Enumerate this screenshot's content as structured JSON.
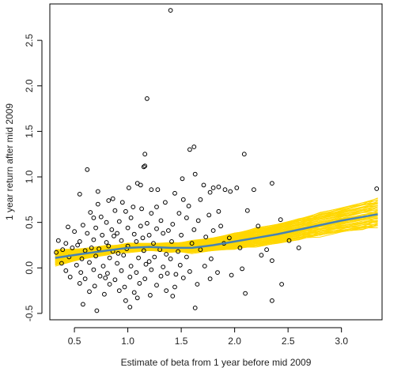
{
  "chart_data": {
    "type": "scatter",
    "title": "",
    "xlabel": "Estimate of beta from 1 year before mid 2009",
    "ylabel": "1 year return after mid 2009",
    "xlim": [
      0.27,
      3.38
    ],
    "ylim": [
      -0.57,
      2.9
    ],
    "xticks": [
      "0.5",
      "1.0",
      "1.5",
      "2.0",
      "2.5",
      "3.0"
    ],
    "yticks": [
      "-0.5",
      "0.0",
      "0.5",
      "1.0",
      "1.5",
      "2.0",
      "2.5"
    ],
    "grid": false,
    "legend": "none",
    "colors": {
      "points": "#000000",
      "bootstrap": "#FFD700",
      "fit": "#4682B4"
    },
    "points": [
      [
        1.4,
        2.83
      ],
      [
        1.18,
        1.86
      ],
      [
        1.62,
        1.33
      ],
      [
        1.58,
        1.3
      ],
      [
        1.16,
        1.25
      ],
      [
        2.09,
        1.25
      ],
      [
        1.16,
        1.12
      ],
      [
        1.15,
        1.11
      ],
      [
        0.62,
        1.08
      ],
      [
        1.63,
        1.03
      ],
      [
        1.51,
        0.98
      ],
      [
        1.09,
        0.93
      ],
      [
        1.12,
        0.91
      ],
      [
        2.35,
        0.93
      ],
      [
        1.01,
        0.88
      ],
      [
        1.71,
        0.91
      ],
      [
        3.33,
        0.87
      ],
      [
        0.72,
        0.84
      ],
      [
        1.28,
        0.86
      ],
      [
        1.22,
        0.86
      ],
      [
        1.8,
        0.88
      ],
      [
        1.85,
        0.89
      ],
      [
        2.02,
        0.88
      ],
      [
        1.91,
        0.86
      ],
      [
        0.55,
        0.81
      ],
      [
        1.44,
        0.82
      ],
      [
        1.77,
        0.83
      ],
      [
        1.96,
        0.84
      ],
      [
        2.18,
        0.86
      ],
      [
        0.86,
        0.76
      ],
      [
        1.52,
        0.75
      ],
      [
        1.68,
        0.75
      ],
      [
        1.57,
        0.68
      ],
      [
        2.12,
        0.63
      ],
      [
        1.27,
        0.67
      ],
      [
        1.05,
        0.67
      ],
      [
        0.95,
        0.72
      ],
      [
        0.98,
        0.62
      ],
      [
        0.72,
        0.7
      ],
      [
        0.82,
        0.74
      ],
      [
        1.35,
        0.72
      ],
      [
        1.85,
        0.62
      ],
      [
        0.65,
        0.61
      ],
      [
        0.88,
        0.63
      ],
      [
        1.13,
        0.65
      ],
      [
        1.22,
        0.6
      ],
      [
        1.48,
        0.6
      ],
      [
        1.76,
        0.58
      ],
      [
        2.43,
        0.53
      ],
      [
        0.75,
        0.56
      ],
      [
        0.68,
        0.55
      ],
      [
        1.03,
        0.55
      ],
      [
        1.31,
        0.52
      ],
      [
        1.55,
        0.55
      ],
      [
        1.66,
        0.52
      ],
      [
        0.8,
        0.5
      ],
      [
        0.92,
        0.51
      ],
      [
        1.18,
        0.49
      ],
      [
        1.42,
        0.48
      ],
      [
        2.22,
        0.46
      ],
      [
        0.58,
        0.47
      ],
      [
        0.7,
        0.44
      ],
      [
        0.85,
        0.42
      ],
      [
        1.0,
        0.44
      ],
      [
        1.12,
        0.46
      ],
      [
        1.27,
        0.43
      ],
      [
        1.38,
        0.41
      ],
      [
        1.62,
        0.42
      ],
      [
        1.8,
        0.41
      ],
      [
        0.44,
        0.45
      ],
      [
        0.5,
        0.4
      ],
      [
        0.62,
        0.38
      ],
      [
        0.76,
        0.36
      ],
      [
        0.9,
        0.38
      ],
      [
        1.06,
        0.37
      ],
      [
        1.2,
        0.36
      ],
      [
        1.33,
        0.38
      ],
      [
        1.5,
        0.36
      ],
      [
        1.73,
        0.34
      ],
      [
        1.95,
        0.33
      ],
      [
        0.35,
        0.3
      ],
      [
        0.42,
        0.27
      ],
      [
        0.55,
        0.29
      ],
      [
        0.68,
        0.31
      ],
      [
        0.8,
        0.28
      ],
      [
        0.94,
        0.3
      ],
      [
        1.08,
        0.29
      ],
      [
        1.24,
        0.27
      ],
      [
        1.41,
        0.29
      ],
      [
        1.6,
        0.27
      ],
      [
        1.9,
        0.27
      ],
      [
        2.51,
        0.3
      ],
      [
        0.39,
        0.2
      ],
      [
        0.48,
        0.22
      ],
      [
        0.6,
        0.19
      ],
      [
        0.73,
        0.21
      ],
      [
        0.86,
        0.18
      ],
      [
        0.99,
        0.21
      ],
      [
        1.15,
        0.19
      ],
      [
        1.3,
        0.2
      ],
      [
        1.47,
        0.18
      ],
      [
        1.68,
        0.2
      ],
      [
        2.05,
        0.22
      ],
      [
        0.33,
        0.17
      ],
      [
        0.45,
        0.12
      ],
      [
        0.57,
        0.1
      ],
      [
        0.7,
        0.13
      ],
      [
        0.83,
        0.11
      ],
      [
        0.96,
        0.14
      ],
      [
        1.1,
        0.11
      ],
      [
        1.25,
        0.12
      ],
      [
        1.4,
        0.1
      ],
      [
        1.55,
        0.12
      ],
      [
        1.78,
        0.1
      ],
      [
        2.25,
        0.14
      ],
      [
        0.38,
        0.05
      ],
      [
        0.52,
        0.03
      ],
      [
        0.64,
        0.06
      ],
      [
        0.77,
        0.02
      ],
      [
        0.9,
        0.05
      ],
      [
        1.03,
        0.02
      ],
      [
        1.17,
        0.04
      ],
      [
        1.33,
        0.01
      ],
      [
        1.49,
        0.03
      ],
      [
        1.72,
        0.02
      ],
      [
        2.35,
        0.08
      ],
      [
        0.42,
        -0.03
      ],
      [
        0.56,
        -0.05
      ],
      [
        0.68,
        -0.02
      ],
      [
        0.81,
        -0.06
      ],
      [
        0.94,
        -0.03
      ],
      [
        1.08,
        -0.05
      ],
      [
        1.22,
        -0.02
      ],
      [
        1.37,
        -0.06
      ],
      [
        1.58,
        -0.04
      ],
      [
        1.84,
        -0.05
      ],
      [
        2.07,
        -0.01
      ],
      [
        0.46,
        -0.1
      ],
      [
        0.6,
        -0.12
      ],
      [
        0.74,
        -0.09
      ],
      [
        0.88,
        -0.13
      ],
      [
        1.02,
        -0.1
      ],
      [
        1.16,
        -0.12
      ],
      [
        1.31,
        -0.09
      ],
      [
        1.52,
        -0.11
      ],
      [
        1.77,
        -0.12
      ],
      [
        2.44,
        -0.18
      ],
      [
        0.55,
        -0.17
      ],
      [
        0.69,
        -0.2
      ],
      [
        0.83,
        -0.18
      ],
      [
        0.97,
        -0.21
      ],
      [
        1.11,
        -0.17
      ],
      [
        1.27,
        -0.19
      ],
      [
        1.44,
        -0.21
      ],
      [
        1.65,
        -0.18
      ],
      [
        0.64,
        -0.26
      ],
      [
        0.78,
        -0.29
      ],
      [
        0.92,
        -0.25
      ],
      [
        1.06,
        -0.27
      ],
      [
        1.21,
        -0.3
      ],
      [
        1.36,
        -0.25
      ],
      [
        2.1,
        -0.28
      ],
      [
        0.58,
        -0.4
      ],
      [
        0.98,
        -0.36
      ],
      [
        1.09,
        -0.33
      ],
      [
        1.42,
        -0.31
      ],
      [
        0.71,
        -0.47
      ],
      [
        1.63,
        -0.44
      ],
      [
        2.35,
        -0.36
      ],
      [
        1.02,
        -0.43
      ],
      [
        1.97,
        -0.08
      ],
      [
        2.3,
        0.2
      ],
      [
        2.6,
        0.22
      ],
      [
        1.87,
        0.46
      ],
      [
        0.82,
        0.24
      ],
      [
        0.91,
        0.16
      ],
      [
        1.14,
        0.33
      ],
      [
        1.36,
        0.15
      ],
      [
        0.66,
        0.22
      ],
      [
        0.53,
        0.25
      ],
      [
        1.0,
        0.24
      ],
      [
        1.2,
        0.07
      ],
      [
        0.79,
        -0.11
      ],
      [
        1.45,
        -0.07
      ],
      [
        0.87,
        0.35
      ]
    ],
    "fit": [
      [
        0.32,
        0.11
      ],
      [
        0.55,
        0.15
      ],
      [
        0.8,
        0.19
      ],
      [
        1.0,
        0.22
      ],
      [
        1.2,
        0.23
      ],
      [
        1.4,
        0.22
      ],
      [
        1.6,
        0.22
      ],
      [
        1.8,
        0.25
      ],
      [
        2.0,
        0.29
      ],
      [
        2.2,
        0.33
      ],
      [
        2.4,
        0.37
      ],
      [
        2.6,
        0.42
      ],
      [
        2.8,
        0.47
      ],
      [
        3.0,
        0.52
      ],
      [
        3.2,
        0.56
      ],
      [
        3.34,
        0.59
      ]
    ],
    "bootstrap_band": {
      "x": [
        0.32,
        0.55,
        0.8,
        1.0,
        1.2,
        1.4,
        1.6,
        1.8,
        2.0,
        2.2,
        2.4,
        2.6,
        2.8,
        3.0,
        3.2,
        3.34
      ],
      "lower": [
        0.03,
        0.09,
        0.15,
        0.18,
        0.19,
        0.18,
        0.17,
        0.19,
        0.21,
        0.24,
        0.27,
        0.31,
        0.35,
        0.39,
        0.42,
        0.45
      ],
      "upper": [
        0.19,
        0.21,
        0.24,
        0.26,
        0.27,
        0.27,
        0.29,
        0.33,
        0.38,
        0.43,
        0.48,
        0.54,
        0.6,
        0.66,
        0.72,
        0.76
      ]
    }
  }
}
